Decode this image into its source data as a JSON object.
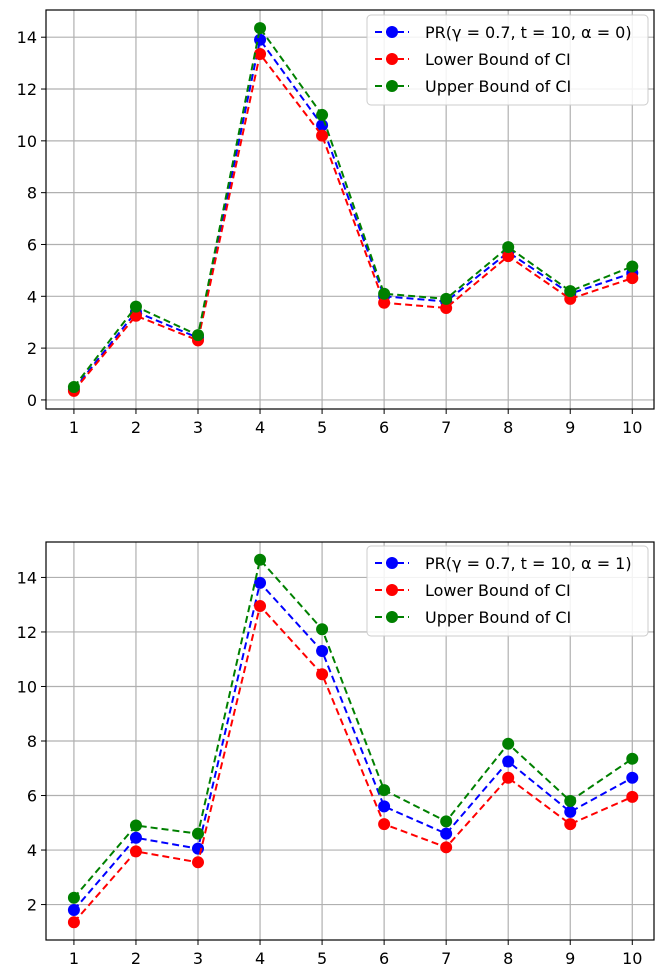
{
  "chart_data": [
    {
      "type": "line",
      "title": "",
      "xlabel": "",
      "ylabel": "",
      "grid": true,
      "legend_position": "top-right",
      "x": [
        1,
        2,
        3,
        4,
        5,
        6,
        7,
        8,
        9,
        10
      ],
      "xlim": [
        0.55,
        10.35
      ],
      "ylim": [
        -0.35,
        15.05
      ],
      "yticks": [
        0,
        2,
        4,
        6,
        8,
        10,
        12,
        14
      ],
      "series": [
        {
          "name": "PR($\\gamma=0.7,t=10,\\alpha=0$)",
          "legend_label": "PR(γ = 0.7, t = 10, α = 0)",
          "color": "#0000ff",
          "values": [
            0.4,
            3.4,
            2.4,
            13.9,
            10.6,
            4.0,
            3.8,
            5.7,
            4.1,
            4.9
          ]
        },
        {
          "name": "Lower Bound of CI",
          "legend_label": "Lower Bound of CI",
          "color": "#ff0000",
          "values": [
            0.35,
            3.25,
            2.3,
            13.35,
            10.2,
            3.75,
            3.55,
            5.55,
            3.9,
            4.7
          ]
        },
        {
          "name": "Upper Bound of CI",
          "legend_label": "Upper Bound of CI",
          "color": "#008000",
          "values": [
            0.5,
            3.6,
            2.5,
            14.35,
            11.0,
            4.1,
            3.9,
            5.9,
            4.2,
            5.15
          ]
        }
      ]
    },
    {
      "type": "line",
      "title": "",
      "xlabel": "",
      "ylabel": "",
      "grid": true,
      "legend_position": "top-right",
      "x": [
        1,
        2,
        3,
        4,
        5,
        6,
        7,
        8,
        9,
        10
      ],
      "xlim": [
        0.55,
        10.35
      ],
      "ylim": [
        0.7,
        15.3
      ],
      "yticks": [
        2,
        4,
        6,
        8,
        10,
        12,
        14
      ],
      "series": [
        {
          "name": "PR($\\gamma=0.7,t=10,\\alpha=1$)",
          "legend_label": "PR(γ = 0.7, t = 10, α = 1)",
          "color": "#0000ff",
          "values": [
            1.8,
            4.45,
            4.05,
            13.8,
            11.3,
            5.6,
            4.6,
            7.25,
            5.4,
            6.65
          ]
        },
        {
          "name": "Lower Bound of CI",
          "legend_label": "Lower Bound of CI",
          "color": "#ff0000",
          "values": [
            1.35,
            3.95,
            3.55,
            12.95,
            10.45,
            4.95,
            4.1,
            6.65,
            4.95,
            5.95
          ]
        },
        {
          "name": "Upper Bound of CI",
          "legend_label": "Upper Bound of CI",
          "color": "#008000",
          "values": [
            2.25,
            4.9,
            4.6,
            14.65,
            12.1,
            6.2,
            5.05,
            7.9,
            5.8,
            7.35
          ]
        }
      ]
    }
  ]
}
